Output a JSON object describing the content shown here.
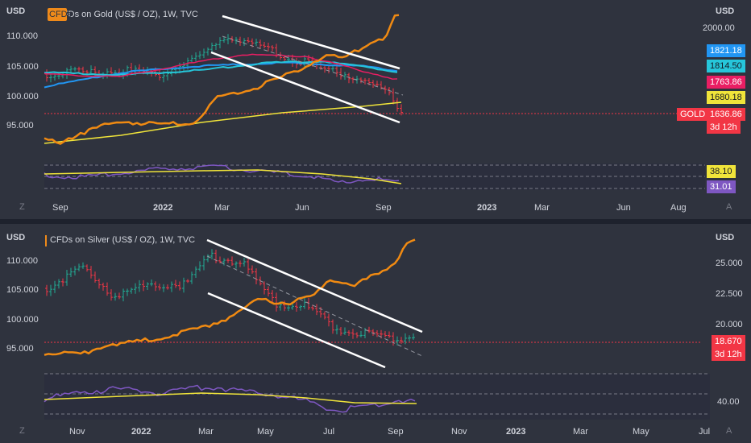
{
  "colors": {
    "background": "#2f333e",
    "bull": "#22ab94",
    "bear": "#f23645",
    "orange": "#f08a12",
    "yellow": "#f0e43a",
    "purple": "#7e57c2",
    "blue_ma": "#2196f3",
    "teal_ma": "#26c6da",
    "red_ma": "#e91e63",
    "channel": "#ffffff"
  },
  "top_chart": {
    "left_currency": "USD",
    "right_currency": "USD",
    "title": "CFDs on Gold (US$ / OZ), 1W, TVC",
    "title_overlap_text": "CFDs",
    "left_axis_labels": [
      "110.000",
      "105.000",
      "100.000",
      "95.000"
    ],
    "right_axis_labels": [
      "2000.00"
    ],
    "price_tags": [
      {
        "value": "1821.18",
        "color": "#2196f3",
        "text_color": "#ffffff"
      },
      {
        "value": "1814.50",
        "color": "#26c6da",
        "text_color": "#131722"
      },
      {
        "value": "1763.86",
        "color": "#e91e63",
        "text_color": "#ffffff"
      },
      {
        "value": "1680.18",
        "color": "#f0e43a",
        "text_color": "#131722"
      }
    ],
    "symbol_tag": "GOLD",
    "last_price": "1636.86",
    "countdown": "3d 12h",
    "indicator_tags": [
      {
        "value": "38.10",
        "color": "#f0e43a",
        "text_color": "#131722"
      },
      {
        "value": "31.01",
        "color": "#7e57c2",
        "text_color": "#ffffff"
      }
    ],
    "time_labels": [
      "Sep",
      "2022",
      "Mar",
      "Jun",
      "Sep",
      "2023",
      "Mar",
      "Jun",
      "Aug"
    ],
    "corner_left": "Z",
    "corner_right": "A"
  },
  "bottom_chart": {
    "left_currency": "USD",
    "right_currency": "USD",
    "title": "CFDs on Silver (US$ / OZ), 1W, TVC",
    "left_axis_labels": [
      "110.000",
      "105.000",
      "100.000",
      "95.000"
    ],
    "right_axis_labels": [
      "25.000",
      "22.500",
      "20.000"
    ],
    "last_price": "18.670",
    "countdown": "3d 12h",
    "indicator_axis_label": "40.00",
    "time_labels": [
      "Nov",
      "2022",
      "Mar",
      "May",
      "Jul",
      "Sep",
      "Nov",
      "2023",
      "Mar",
      "May",
      "Jul"
    ],
    "corner_left": "Z",
    "corner_right": "A"
  }
}
